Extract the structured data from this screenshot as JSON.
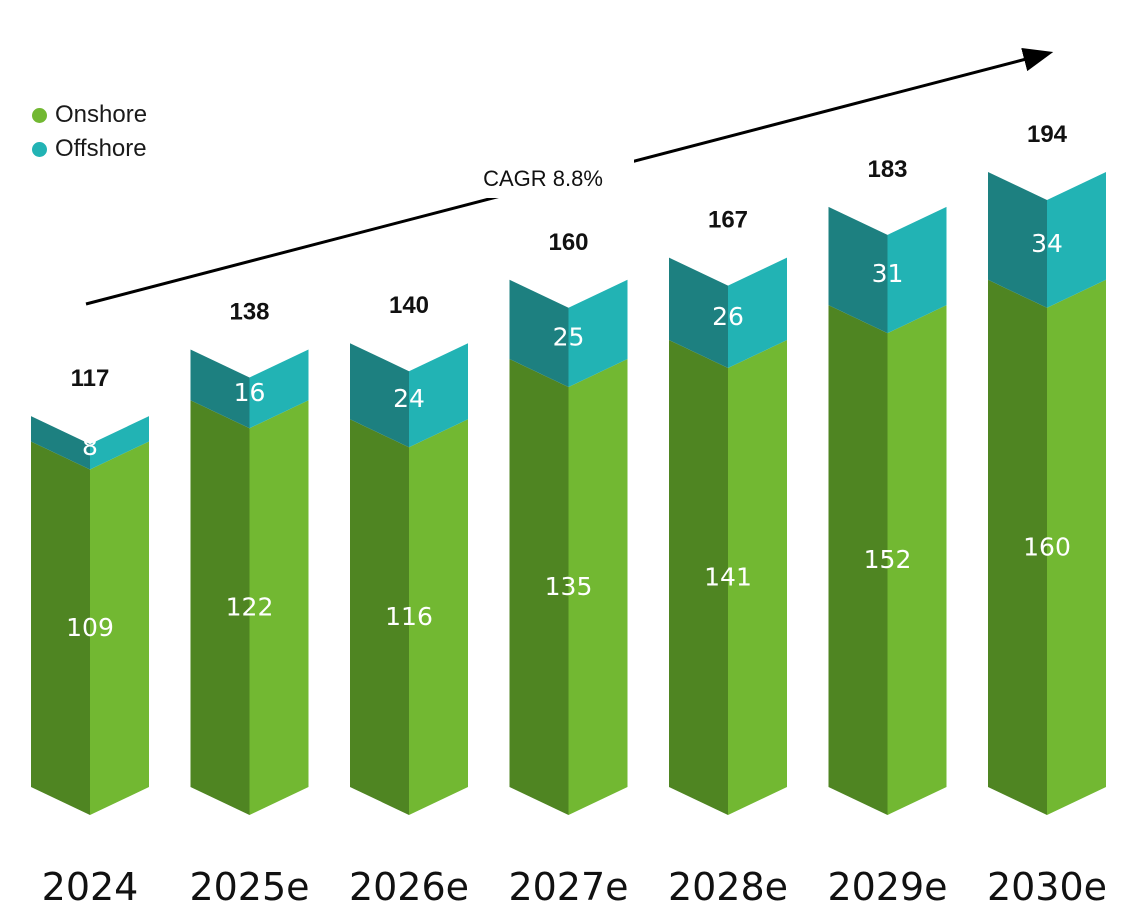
{
  "chart_data": {
    "type": "bar",
    "stacked": true,
    "categories": [
      "2024",
      "2025e",
      "2026e",
      "2027e",
      "2028e",
      "2029e",
      "2030e"
    ],
    "series": [
      {
        "name": "Onshore",
        "values": [
          109,
          122,
          116,
          135,
          141,
          152,
          160
        ],
        "color": "#72b832",
        "shade": "#4f8522"
      },
      {
        "name": "Offshore",
        "values": [
          8,
          16,
          24,
          25,
          26,
          31,
          34
        ],
        "color": "#22b3b4",
        "shade": "#1d8080"
      }
    ],
    "totals": [
      117,
      138,
      140,
      160,
      167,
      183,
      194
    ],
    "annotation": "CAGR 8.8%",
    "legend_position": "top-left",
    "grid": false
  }
}
